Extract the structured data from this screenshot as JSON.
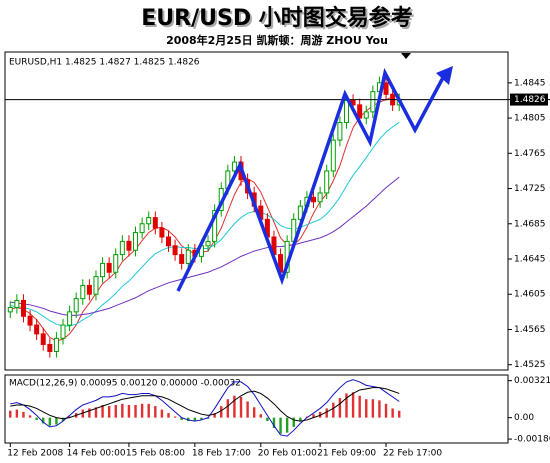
{
  "chart_data": [
    {
      "type": "candlestick",
      "title": "EUR/USD 小时图交易参考",
      "subtitle": "2008年2月25日  凯斯顿：周游 ZHOU You",
      "label": "EURUSD,H1 1.4825 1.4827 1.4825 1.4826",
      "current_price": 1.4826,
      "up_color": "#00a000",
      "down_color": "#e00000",
      "xlim": [
        -0.8,
        75.5
      ],
      "ylim": [
        1.4519,
        1.488
      ],
      "yticks": [
        1.4845,
        1.4805,
        1.4765,
        1.4725,
        1.4685,
        1.4645,
        1.4605,
        1.4565,
        1.4525
      ],
      "x": [
        0,
        1,
        2,
        3,
        4,
        5,
        6,
        7,
        8,
        9,
        10,
        11,
        12,
        13,
        14,
        15,
        16,
        17,
        18,
        19,
        20,
        21,
        22,
        23,
        24,
        25,
        26,
        27,
        28,
        29,
        30,
        31,
        32,
        33,
        34,
        35,
        36,
        37,
        38,
        39,
        40,
        41,
        42,
        43,
        44,
        45,
        46,
        47,
        48,
        49,
        50,
        51,
        52,
        53,
        54,
        55,
        56,
        57,
        58,
        59
      ],
      "open": [
        1.4585,
        1.459,
        1.4598,
        1.458,
        1.457,
        1.456,
        1.4548,
        1.454,
        1.4555,
        1.457,
        1.4585,
        1.46,
        1.4615,
        1.4605,
        1.4625,
        1.464,
        1.463,
        1.465,
        1.4665,
        1.4655,
        1.4675,
        1.4685,
        1.4692,
        1.468,
        1.467,
        1.466,
        1.465,
        1.464,
        1.4655,
        1.4648,
        1.466,
        1.4665,
        1.47,
        1.4725,
        1.4745,
        1.4755,
        1.4735,
        1.472,
        1.4705,
        1.469,
        1.467,
        1.465,
        1.463,
        1.4665,
        1.469,
        1.4705,
        1.4715,
        1.471,
        1.472,
        1.4745,
        1.478,
        1.48,
        1.4825,
        1.482,
        1.4805,
        1.4812,
        1.4835,
        1.4845,
        1.4832,
        1.482
      ],
      "high": [
        1.4597,
        1.4605,
        1.4605,
        1.4587,
        1.4577,
        1.4567,
        1.4555,
        1.4562,
        1.4577,
        1.4592,
        1.4607,
        1.4622,
        1.4622,
        1.4632,
        1.4647,
        1.4647,
        1.4657,
        1.4672,
        1.4672,
        1.4682,
        1.4692,
        1.4699,
        1.4699,
        1.4687,
        1.4677,
        1.4667,
        1.4657,
        1.4662,
        1.4662,
        1.4667,
        1.4672,
        1.4707,
        1.4732,
        1.4752,
        1.4762,
        1.4762,
        1.4742,
        1.4727,
        1.4712,
        1.4697,
        1.4677,
        1.4657,
        1.4672,
        1.4697,
        1.4712,
        1.4722,
        1.4722,
        1.4727,
        1.4752,
        1.4787,
        1.4807,
        1.4832,
        1.4832,
        1.4827,
        1.4819,
        1.4842,
        1.4852,
        1.4852,
        1.4839,
        1.4833
      ],
      "low": [
        1.4578,
        1.4583,
        1.4573,
        1.4563,
        1.4553,
        1.4541,
        1.4533,
        1.4533,
        1.4548,
        1.4563,
        1.4578,
        1.4593,
        1.4598,
        1.4598,
        1.4618,
        1.4623,
        1.4623,
        1.4643,
        1.4648,
        1.4648,
        1.4668,
        1.4678,
        1.4673,
        1.4663,
        1.4653,
        1.4643,
        1.4633,
        1.4633,
        1.4641,
        1.4641,
        1.4653,
        1.4658,
        1.4693,
        1.4718,
        1.4738,
        1.4728,
        1.4713,
        1.4698,
        1.4683,
        1.4663,
        1.4643,
        1.4623,
        1.4623,
        1.4658,
        1.4683,
        1.4698,
        1.4703,
        1.4703,
        1.4713,
        1.4738,
        1.4773,
        1.4793,
        1.4813,
        1.4798,
        1.4798,
        1.4805,
        1.4828,
        1.4825,
        1.4813,
        1.4813
      ],
      "close": [
        1.459,
        1.4598,
        1.458,
        1.457,
        1.456,
        1.4548,
        1.454,
        1.4555,
        1.457,
        1.4585,
        1.46,
        1.4615,
        1.4605,
        1.4625,
        1.464,
        1.463,
        1.465,
        1.4665,
        1.4655,
        1.4675,
        1.4685,
        1.4692,
        1.468,
        1.467,
        1.466,
        1.465,
        1.464,
        1.4655,
        1.4648,
        1.466,
        1.4665,
        1.47,
        1.4725,
        1.4745,
        1.4755,
        1.4735,
        1.472,
        1.4705,
        1.469,
        1.467,
        1.465,
        1.463,
        1.4665,
        1.469,
        1.4705,
        1.4715,
        1.471,
        1.472,
        1.4745,
        1.478,
        1.48,
        1.4825,
        1.482,
        1.4805,
        1.4812,
        1.4835,
        1.4845,
        1.4832,
        1.482,
        1.4826
      ],
      "series": [
        {
          "color": "#e03030",
          "values": [
            1.4588,
            1.459,
            1.4588,
            1.4583,
            1.4576,
            1.4566,
            1.4556,
            1.4552,
            1.4554,
            1.456,
            1.457,
            1.4585,
            1.4595,
            1.4606,
            1.4617,
            1.4623,
            1.463,
            1.4642,
            1.4649,
            1.4656,
            1.4666,
            1.4675,
            1.468,
            1.4681,
            1.4677,
            1.467,
            1.466,
            1.4655,
            1.4651,
            1.4653,
            1.4654,
            1.4666,
            1.468,
            1.4699,
            1.4718,
            1.4732,
            1.4736,
            1.4732,
            1.4721,
            1.4704,
            1.4687,
            1.4669,
            1.4661,
            1.4661,
            1.4668,
            1.4681,
            1.4697,
            1.471,
            1.4719,
            1.4734,
            1.4751,
            1.4774,
            1.4794,
            1.4806,
            1.4813,
            1.4819,
            1.4823,
            1.4826,
            1.4829,
            1.4832
          ]
        },
        {
          "color": "#20c8d8",
          "values": [
            1.4592,
            1.4591,
            1.459,
            1.4588,
            1.4585,
            1.458,
            1.4575,
            1.4571,
            1.4569,
            1.4569,
            1.4571,
            1.4576,
            1.458,
            1.4586,
            1.4593,
            1.4599,
            1.4606,
            1.4614,
            1.462,
            1.4628,
            1.4636,
            1.4644,
            1.4651,
            1.4655,
            1.4658,
            1.4659,
            1.4658,
            1.4658,
            1.4657,
            1.4657,
            1.4657,
            1.4661,
            1.4667,
            1.4676,
            1.4685,
            1.4692,
            1.4697,
            1.4699,
            1.4698,
            1.4695,
            1.469,
            1.4683,
            1.468,
            1.4679,
            1.4681,
            1.4684,
            1.4687,
            1.469,
            1.4696,
            1.4705,
            1.4715,
            1.4728,
            1.474,
            1.475,
            1.476,
            1.4771,
            1.4781,
            1.4789,
            1.4795,
            1.48
          ]
        },
        {
          "color": "#7030c0",
          "values": [
            1.4596,
            1.4595,
            1.4594,
            1.4593,
            1.4591,
            1.4589,
            1.4586,
            1.4584,
            1.4582,
            1.4581,
            1.4581,
            1.4582,
            1.4583,
            1.4585,
            1.4587,
            1.4589,
            1.4592,
            1.4595,
            1.4598,
            1.4601,
            1.4605,
            1.4609,
            1.4612,
            1.4615,
            1.4618,
            1.462,
            1.4622,
            1.4624,
            1.4626,
            1.4628,
            1.463,
            1.4633,
            1.4636,
            1.464,
            1.4644,
            1.4648,
            1.4651,
            1.4654,
            1.4656,
            1.4658,
            1.4659,
            1.4659,
            1.466,
            1.4661,
            1.4663,
            1.4665,
            1.4667,
            1.4669,
            1.4672,
            1.4676,
            1.4681,
            1.4687,
            1.4693,
            1.4699,
            1.4705,
            1.4712,
            1.4719,
            1.4726,
            1.4732,
            1.4738
          ]
        }
      ]
    },
    {
      "type": "macd",
      "label": "MACD(12,26,9) 0.00095 0.00120 0.00000 -0.00032",
      "ylim": [
        -0.0022,
        0.0037
      ],
      "yticks": [
        0.00321,
        {
          "value": 0,
          "label": "0.00"
        },
        -0.00186
      ],
      "xticks": [
        {
          "value": 0,
          "label": "12 Feb 2008"
        },
        {
          "value": 9,
          "label": "14 Feb 00:00"
        },
        {
          "value": 18,
          "label": "15 Feb 08:00"
        },
        {
          "value": 28,
          "label": "18 Feb 17:00"
        },
        {
          "value": 38,
          "label": "20 Feb 01:00"
        },
        {
          "value": 47,
          "label": "21 Feb 09:00"
        },
        {
          "value": 57,
          "label": "22 Feb 17:00"
        }
      ],
      "up_color": "#e03030",
      "down_color": "#20a020",
      "histogram": [
        0.0006,
        0.0007,
        0.0005,
        0.0002,
        -0.0002,
        -0.0005,
        -0.0007,
        -0.0006,
        -0.0003,
        0.0001,
        0.0004,
        0.0007,
        0.0008,
        0.0009,
        0.0011,
        0.001,
        0.0011,
        0.0012,
        0.0011,
        0.0011,
        0.0012,
        0.0012,
        0.001,
        0.0007,
        0.0004,
        0.0001,
        -0.0002,
        -0.0003,
        -0.0003,
        -0.0002,
        -0.0001,
        0.0004,
        0.001,
        0.0016,
        0.0019,
        0.0018,
        0.0014,
        0.0009,
        0.0003,
        -0.0003,
        -0.0009,
        -0.0014,
        -0.0013,
        -0.0008,
        -0.0003,
        0.0001,
        0.0003,
        0.0005,
        0.0008,
        0.0013,
        0.0017,
        0.0021,
        0.0022,
        0.0019,
        0.0016,
        0.0016,
        0.0015,
        0.0012,
        0.0008,
        0.0006
      ],
      "series": [
        {
          "color": "#1010c0",
          "values": [
            0.0012,
            0.0013,
            0.0011,
            0.0007,
            0.0002,
            -0.0004,
            -0.0008,
            -0.0007,
            -0.0003,
            0.0002,
            0.0007,
            0.0011,
            0.0013,
            0.0015,
            0.0018,
            0.0018,
            0.0019,
            0.0021,
            0.002,
            0.002,
            0.0021,
            0.0021,
            0.0019,
            0.0015,
            0.001,
            0.0005,
            0.0,
            -0.0002,
            -0.0003,
            -0.0002,
            0.0,
            0.0008,
            0.0017,
            0.0026,
            0.0031,
            0.0031,
            0.0027,
            0.002,
            0.0011,
            0.0002,
            -0.0007,
            -0.0015,
            -0.0016,
            -0.0011,
            -0.0005,
            0.0,
            0.0004,
            0.0008,
            0.0013,
            0.002,
            0.0026,
            0.0031,
            0.0033,
            0.0031,
            0.0028,
            0.0027,
            0.0026,
            0.0022,
            0.0018,
            0.0014
          ]
        },
        {
          "color": "#000000",
          "values": [
            0.001,
            0.0011,
            0.0011,
            0.001,
            0.0008,
            0.0005,
            0.0002,
            0.0,
            -0.0001,
            0.0,
            0.0002,
            0.0004,
            0.0006,
            0.0008,
            0.001,
            0.0012,
            0.0014,
            0.0016,
            0.0017,
            0.0018,
            0.0019,
            0.0019,
            0.0019,
            0.0018,
            0.0016,
            0.0013,
            0.001,
            0.0007,
            0.0005,
            0.0003,
            0.0002,
            0.0003,
            0.0006,
            0.001,
            0.0015,
            0.0019,
            0.0022,
            0.0023,
            0.0021,
            0.0017,
            0.0012,
            0.0006,
            0.0001,
            -0.0002,
            -0.0003,
            -0.0002,
            0.0,
            0.0002,
            0.0005,
            0.0008,
            0.0012,
            0.0017,
            0.0021,
            0.0024,
            0.0025,
            0.0026,
            0.0026,
            0.0025,
            0.0023,
            0.0021
          ]
        }
      ]
    }
  ]
}
